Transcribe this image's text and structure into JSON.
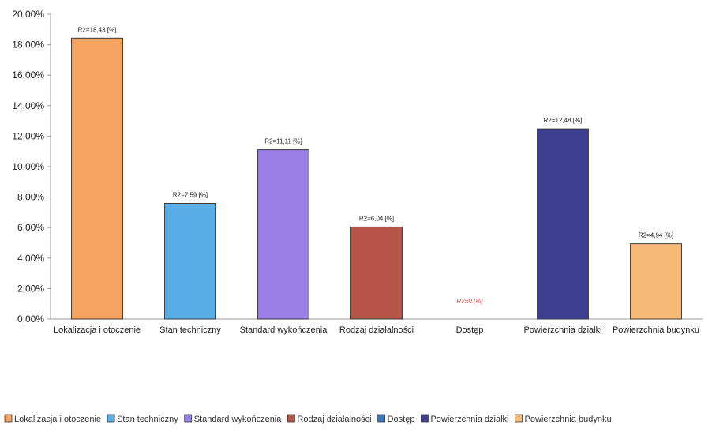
{
  "chart_data": {
    "type": "bar",
    "title": "",
    "xlabel": "",
    "ylabel": "",
    "ylim": [
      0,
      20
    ],
    "yticks": [
      "0,00%",
      "2,00%",
      "4,00%",
      "6,00%",
      "8,00%",
      "10,00%",
      "12,00%",
      "14,00%",
      "16,00%",
      "18,00%",
      "20,00%"
    ],
    "categories": [
      "Lokalizacja i otoczenie",
      "Stan techniczny",
      "Standard wykończenia",
      "Rodzaj działalności",
      "Dostęp",
      "Powierzchnia działki",
      "Powierzchnia budynku"
    ],
    "values": [
      18.43,
      7.59,
      11.11,
      6.04,
      0,
      12.48,
      4.94
    ],
    "data_labels": [
      "R2=18,43 [%]",
      "R2=7,59 [%]",
      "R2=11,11 [%]",
      "R2=6,04 [%]",
      "R2=0 [%]",
      "R2=12,48 [%]",
      "R2=4,94 [%]"
    ],
    "data_label_colors": [
      "#222222",
      "#222222",
      "#222222",
      "#222222",
      "#e0403a",
      "#222222",
      "#222222"
    ],
    "colors": [
      "#f4a460",
      "#5aaee8",
      "#9b7fe6",
      "#b5554a",
      "#3a78c2",
      "#3f3f8f",
      "#f7bb78"
    ],
    "legend": {
      "position": "bottom",
      "entries": [
        "Lokalizacja i otoczenie",
        "Stan techniczny",
        "Standard wykończenia",
        "Rodzaj działalności",
        "Dostęp",
        "Powierzchnia działki",
        "Powierzchnia budynku"
      ]
    },
    "grid": false
  }
}
